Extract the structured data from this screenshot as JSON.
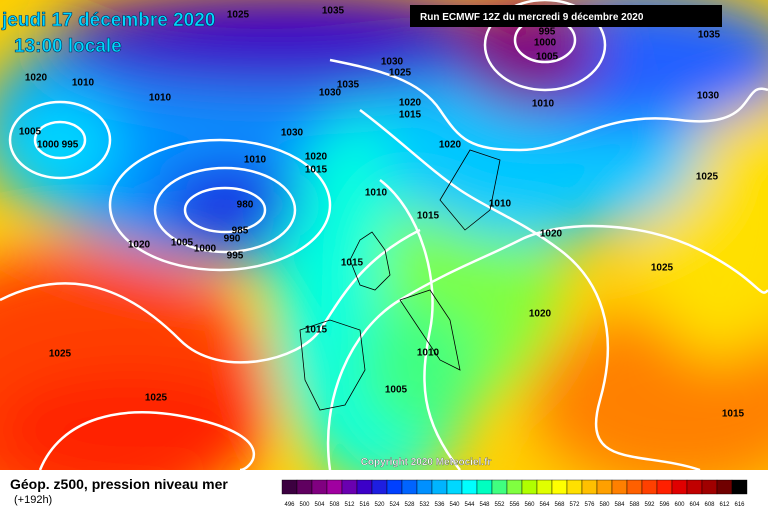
{
  "header": {
    "date": "jeudi 17 décembre 2020",
    "time": "13:00 locale",
    "run": "Run ECMWF 12Z du mercredi 9 décembre 2020"
  },
  "isobar_labels": [
    "1025",
    "1035",
    "1020",
    "1010",
    "1010",
    "1005",
    "1000",
    "995",
    "1030",
    "1025",
    "1030",
    "1035",
    "1020",
    "1015",
    "1030",
    "1010",
    "1020",
    "1015",
    "1020",
    "1010",
    "980",
    "985",
    "990",
    "1005",
    "1000",
    "995",
    "1020",
    "1015",
    "1010",
    "1020",
    "1015",
    "1025",
    "1020",
    "1015",
    "1025",
    "1010",
    "1005",
    "1025",
    "1015",
    "995",
    "1000",
    "1005",
    "1010",
    "1035",
    "1030",
    "1025"
  ],
  "copyright": "Copyright 2020 Meteociel.fr",
  "footer": {
    "title": "Géop. z500, pression niveau mer",
    "lead": "(+192h)"
  },
  "scale": {
    "values": [
      496,
      500,
      504,
      508,
      512,
      516,
      520,
      524,
      528,
      532,
      536,
      540,
      544,
      548,
      552,
      556,
      560,
      564,
      568,
      572,
      576,
      580,
      584,
      588,
      592,
      596,
      600,
      604,
      608,
      612,
      616
    ],
    "colors": [
      "#3c0040",
      "#600060",
      "#800080",
      "#a000a0",
      "#6a00b0",
      "#3c00c8",
      "#1e1ee0",
      "#0040ff",
      "#0064ff",
      "#0090ff",
      "#00b4ff",
      "#00d8ff",
      "#00ffff",
      "#00ffc0",
      "#40ff80",
      "#80ff40",
      "#b0ff00",
      "#e0ff00",
      "#ffff00",
      "#ffe000",
      "#ffc000",
      "#ffa000",
      "#ff8000",
      "#ff6000",
      "#ff4000",
      "#ff2000",
      "#e00000",
      "#c00000",
      "#a00000",
      "#700000",
      "#000000"
    ]
  }
}
